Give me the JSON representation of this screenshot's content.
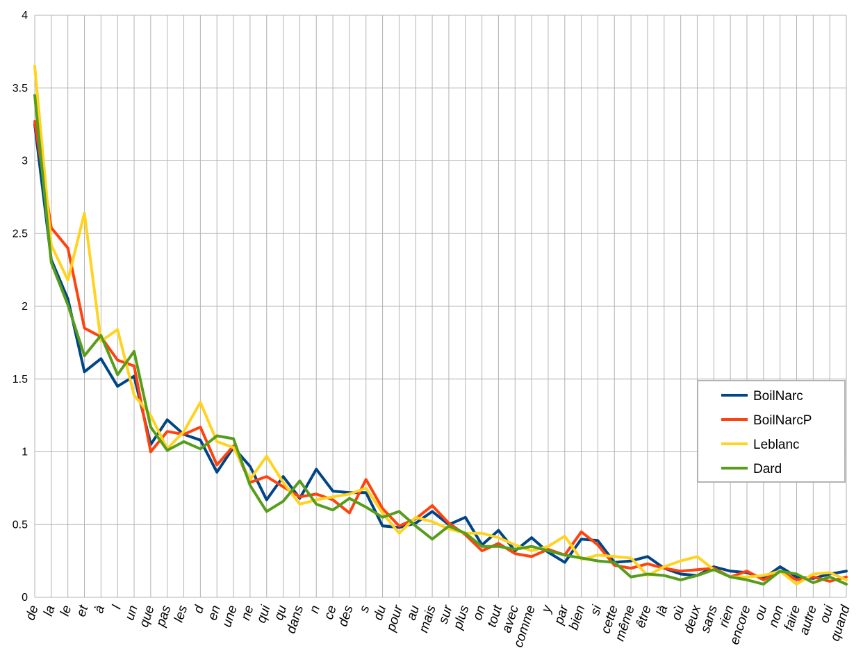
{
  "chart_data": {
    "type": "line",
    "title": "",
    "xlabel": "",
    "ylabel": "",
    "ylim": [
      0,
      4
    ],
    "yticks": [
      "0",
      "0.5",
      "1",
      "1.5",
      "2",
      "2.5",
      "3",
      "3.5",
      "4"
    ],
    "grid": true,
    "legend_position": "right",
    "categories": [
      "de",
      "la",
      "le",
      "et",
      "à",
      "l",
      "un",
      "que",
      "pas",
      "les",
      "d",
      "en",
      "une",
      "ne",
      "qui",
      "qu",
      "dans",
      "n",
      "ce",
      "des",
      "s",
      "du",
      "pour",
      "au",
      "mais",
      "sur",
      "plus",
      "on",
      "tout",
      "avec",
      "comme",
      "y",
      "par",
      "bien",
      "si",
      "cette",
      "même",
      "être",
      "là",
      "où",
      "deux",
      "sans",
      "rien",
      "encore",
      "ou",
      "non",
      "faire",
      "autre",
      "oui",
      "quand"
    ],
    "series": [
      {
        "name": "BoilNarc",
        "color": "#004586",
        "values": [
          3.25,
          2.32,
          2.05,
          1.55,
          1.64,
          1.45,
          1.52,
          1.05,
          1.22,
          1.12,
          1.08,
          0.86,
          1.03,
          0.9,
          0.67,
          0.83,
          0.68,
          0.88,
          0.73,
          0.72,
          0.72,
          0.49,
          0.48,
          0.51,
          0.59,
          0.5,
          0.55,
          0.36,
          0.46,
          0.32,
          0.41,
          0.31,
          0.24,
          0.4,
          0.39,
          0.24,
          0.25,
          0.28,
          0.2,
          0.16,
          0.15,
          0.21,
          0.18,
          0.17,
          0.13,
          0.21,
          0.14,
          0.13,
          0.16,
          0.18
        ]
      },
      {
        "name": "BoilNarcP",
        "color": "#ff420e",
        "values": [
          3.27,
          2.54,
          2.4,
          1.85,
          1.79,
          1.63,
          1.59,
          1.0,
          1.14,
          1.12,
          1.17,
          0.91,
          1.04,
          0.79,
          0.83,
          0.76,
          0.69,
          0.71,
          0.67,
          0.58,
          0.81,
          0.61,
          0.49,
          0.54,
          0.63,
          0.51,
          0.43,
          0.32,
          0.37,
          0.3,
          0.28,
          0.33,
          0.29,
          0.45,
          0.36,
          0.22,
          0.2,
          0.23,
          0.2,
          0.18,
          0.19,
          0.2,
          0.14,
          0.18,
          0.12,
          0.18,
          0.12,
          0.14,
          0.11,
          0.14
        ]
      },
      {
        "name": "Leblanc",
        "color": "#ffd320",
        "values": [
          3.65,
          2.42,
          2.18,
          2.64,
          1.76,
          1.84,
          1.39,
          1.25,
          1.02,
          1.14,
          1.34,
          1.07,
          1.03,
          0.81,
          0.97,
          0.79,
          0.64,
          0.67,
          0.69,
          0.71,
          0.75,
          0.58,
          0.44,
          0.55,
          0.52,
          0.47,
          0.44,
          0.44,
          0.41,
          0.36,
          0.32,
          0.35,
          0.42,
          0.26,
          0.29,
          0.28,
          0.27,
          0.15,
          0.21,
          0.25,
          0.28,
          0.19,
          0.14,
          0.14,
          0.15,
          0.18,
          0.09,
          0.16,
          0.17,
          0.12
        ]
      },
      {
        "name": "Dard",
        "color": "#579d1c",
        "values": [
          3.45,
          2.3,
          2.01,
          1.66,
          1.8,
          1.53,
          1.69,
          1.17,
          1.01,
          1.07,
          1.02,
          1.11,
          1.09,
          0.77,
          0.59,
          0.66,
          0.8,
          0.64,
          0.6,
          0.68,
          0.62,
          0.55,
          0.59,
          0.49,
          0.4,
          0.49,
          0.44,
          0.35,
          0.35,
          0.33,
          0.35,
          0.32,
          0.29,
          0.27,
          0.25,
          0.24,
          0.14,
          0.16,
          0.15,
          0.12,
          0.15,
          0.19,
          0.14,
          0.12,
          0.09,
          0.18,
          0.16,
          0.1,
          0.14,
          0.09
        ]
      }
    ]
  }
}
